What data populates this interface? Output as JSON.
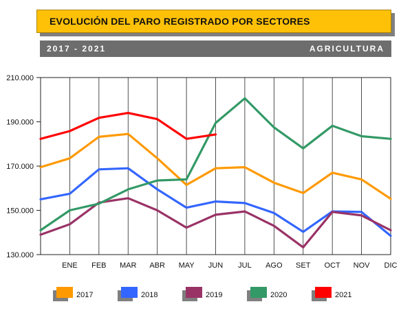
{
  "header": {
    "title": "EVOLUCIÓN DEL PARO REGISTRADO POR SECTORES",
    "period": "2017 - 2021",
    "sector": "AGRICULTURA"
  },
  "colors": {
    "2017": "#ff9900",
    "2018": "#3366ff",
    "2019": "#993366",
    "2020": "#339966",
    "2021": "#ff0000",
    "title_bg": "#ffc107",
    "subtitle_bg": "#6d6d6d"
  },
  "chart_data": {
    "type": "line",
    "title": "",
    "xlabel": "",
    "ylabel": "",
    "x": [
      "",
      "ENE",
      "FEB",
      "MAR",
      "ABR",
      "MAY",
      "JUN",
      "JUL",
      "AGO",
      "SET",
      "OCT",
      "NOV",
      "DIC"
    ],
    "ylim": [
      130000,
      210000
    ],
    "yticks": [
      "130.000",
      "150.000",
      "170.000",
      "190.000",
      "210.000"
    ],
    "ytick_values": [
      130000,
      150000,
      170000,
      190000,
      210000
    ],
    "grid": "vertical",
    "legend": "bottom",
    "series": [
      {
        "name": "2017",
        "values": [
          169500,
          173500,
          183200,
          184500,
          173500,
          161500,
          169000,
          169500,
          162500,
          157800,
          167000,
          164000,
          155200
        ]
      },
      {
        "name": "2018",
        "values": [
          155000,
          157500,
          168500,
          169000,
          159500,
          151200,
          154000,
          153300,
          148800,
          140300,
          149500,
          149300,
          138500
        ]
      },
      {
        "name": "2019",
        "values": [
          139000,
          143700,
          153500,
          155500,
          150000,
          142200,
          148000,
          149500,
          143000,
          133300,
          149300,
          147700,
          141000
        ]
      },
      {
        "name": "2020",
        "values": [
          141000,
          150000,
          153000,
          159500,
          163500,
          164000,
          189500,
          200600,
          187500,
          178000,
          188200,
          183500,
          182300
        ]
      },
      {
        "name": "2021",
        "values": [
          182300,
          185800,
          191800,
          194000,
          191200,
          182300,
          184300,
          null,
          null,
          null,
          null,
          null,
          null
        ]
      }
    ]
  }
}
